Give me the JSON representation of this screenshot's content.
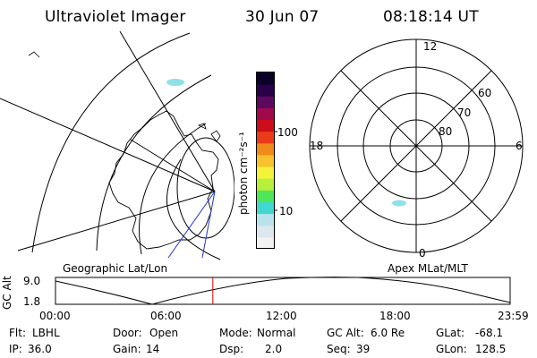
{
  "header": {
    "title": "Ultraviolet Imager",
    "date": "30 Jun 07",
    "time": "08:18:14 UT"
  },
  "left_panel": {
    "label": "Geographic Lat/Lon"
  },
  "colorbar": {
    "label": "photon cm⁻²s⁻¹",
    "tick_100": "100",
    "tick_10": "10",
    "colors": [
      "#f2f2f2",
      "#dde7f0",
      "#b9e3ec",
      "#40d8d0",
      "#4fe65a",
      "#b4f03c",
      "#f3f33a",
      "#f7c22c",
      "#f08a1c",
      "#ea3b1a",
      "#cc0e1a",
      "#a00a4c",
      "#5c0a60",
      "#2a0048",
      "#0a0028"
    ]
  },
  "polar_plot": {
    "label": "Apex MLat/MLT",
    "mlt_12": "12",
    "mlt_18": "18",
    "mlt_6": "6",
    "mlt_0": "0",
    "lat_60": "60",
    "lat_70": "70",
    "lat_80": "80"
  },
  "altitude_track": {
    "ylabel": "GC Alt",
    "y_top": "9.0",
    "y_bottom": "1.8",
    "x_ticks": [
      "00:00",
      "06:00",
      "12:00",
      "18:00",
      "23:59"
    ],
    "current_time_fraction": 0.346,
    "marker_color": "#dd0000"
  },
  "info": {
    "row1": [
      {
        "label": "Flt:",
        "value": "LBHL"
      },
      {
        "label": "Door:",
        "value": "Open"
      },
      {
        "label": "Mode:",
        "value": "Normal"
      },
      {
        "label": "GC Alt:",
        "value": "6.0 Re"
      },
      {
        "label": "GLat:",
        "value": "-68.1"
      }
    ],
    "row2": [
      {
        "label": "IP:",
        "value": "36.0"
      },
      {
        "label": "Gain:",
        "value": "14"
      },
      {
        "label": "Dsp:",
        "value": "2.0"
      },
      {
        "label": "Seq:",
        "value": "39"
      },
      {
        "label": "GLon:",
        "value": "128.5"
      }
    ]
  },
  "colors": {
    "aurora": "#8fe0e8",
    "meridian": "#2233cc"
  }
}
